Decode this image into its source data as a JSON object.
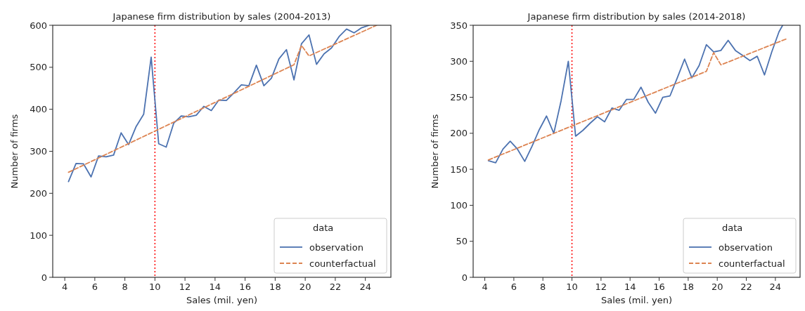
{
  "chart_data": [
    {
      "type": "line",
      "title": "Japanese firm distribution by sales (2004-2013)",
      "xlabel": "Sales (mil. yen)",
      "ylabel": "Number of firms",
      "legend_title": "data",
      "legend": "bottom right",
      "grid": false,
      "xlim": [
        3.2,
        25.7
      ],
      "xticks": [
        4,
        6,
        8,
        10,
        12,
        14,
        16,
        18,
        20,
        22,
        24
      ],
      "ylim": [
        0,
        600
      ],
      "yticks": [
        0,
        100,
        200,
        300,
        400,
        500,
        600
      ],
      "ref_lines": [
        {
          "axis": "x",
          "value": 10,
          "color": "#ff0000",
          "line_style": "dotted"
        }
      ],
      "series": [
        {
          "name": "observation",
          "color": "#4c72b0",
          "line_style": "solid",
          "x": [
            4.25,
            4.75,
            5.25,
            5.75,
            6.25,
            6.75,
            7.25,
            7.75,
            8.25,
            8.75,
            9.25,
            9.75,
            10.25,
            10.75,
            11.25,
            11.75,
            12.25,
            12.75,
            13.25,
            13.75,
            14.25,
            14.75,
            15.25,
            15.75,
            16.25,
            16.75,
            17.25,
            17.75,
            18.25,
            18.75,
            19.25,
            19.75,
            20.25,
            20.75,
            21.25,
            21.75,
            22.25,
            22.75,
            23.25,
            23.75,
            24.25
          ],
          "values": [
            228,
            271,
            270,
            239,
            289,
            287,
            291,
            344,
            316,
            359,
            388,
            524,
            318,
            310,
            367,
            384,
            382,
            386,
            407,
            397,
            422,
            421,
            439,
            458,
            456,
            505,
            456,
            474,
            520,
            542,
            470,
            556,
            577,
            507,
            532,
            546,
            573,
            591,
            582,
            594,
            600
          ]
        },
        {
          "name": "counterfactual",
          "color": "#dd8452",
          "line_style": "dashed",
          "x": [
            4.25,
            19.25,
            19.75,
            20.25,
            24.75
          ],
          "values": [
            250,
            506,
            552,
            527,
            600
          ]
        }
      ]
    },
    {
      "type": "line",
      "title": "Japanese firm distribution by sales (2014-2018)",
      "xlabel": "Sales (mil. yen)",
      "ylabel": "Number of firms",
      "legend_title": "data",
      "legend": "bottom right",
      "grid": false,
      "xlim": [
        3.2,
        25.7
      ],
      "xticks": [
        4,
        6,
        8,
        10,
        12,
        14,
        16,
        18,
        20,
        22,
        24
      ],
      "ylim": [
        0,
        350
      ],
      "yticks": [
        0,
        50,
        100,
        150,
        200,
        250,
        300,
        350
      ],
      "ref_lines": [
        {
          "axis": "x",
          "value": 10,
          "color": "#ff0000",
          "line_style": "dotted"
        }
      ],
      "series": [
        {
          "name": "observation",
          "color": "#4c72b0",
          "line_style": "solid",
          "x": [
            4.25,
            4.75,
            5.25,
            5.75,
            6.25,
            6.75,
            7.25,
            7.75,
            8.25,
            8.75,
            9.25,
            9.75,
            10.25,
            10.75,
            11.25,
            11.75,
            12.25,
            12.75,
            13.25,
            13.75,
            14.25,
            14.75,
            15.25,
            15.75,
            16.25,
            16.75,
            17.25,
            17.75,
            18.25,
            18.75,
            19.25,
            19.75,
            20.25,
            20.75,
            21.25,
            21.75,
            22.25,
            22.75,
            23.25,
            23.75,
            24.25,
            24.5
          ],
          "values": [
            162,
            159,
            178,
            189,
            178,
            161,
            182,
            205,
            224,
            200,
            245,
            300,
            196,
            204,
            214,
            223,
            216,
            235,
            232,
            247,
            247,
            264,
            243,
            228,
            250,
            252,
            277,
            303,
            277,
            294,
            323,
            313,
            315,
            329,
            315,
            308,
            301,
            307,
            281,
            313,
            341,
            350
          ]
        },
        {
          "name": "counterfactual",
          "color": "#dd8452",
          "line_style": "dashed",
          "x": [
            4.25,
            19.25,
            19.75,
            20.25,
            24.75
          ],
          "values": [
            163,
            286,
            312,
            295,
            331
          ]
        }
      ]
    }
  ]
}
